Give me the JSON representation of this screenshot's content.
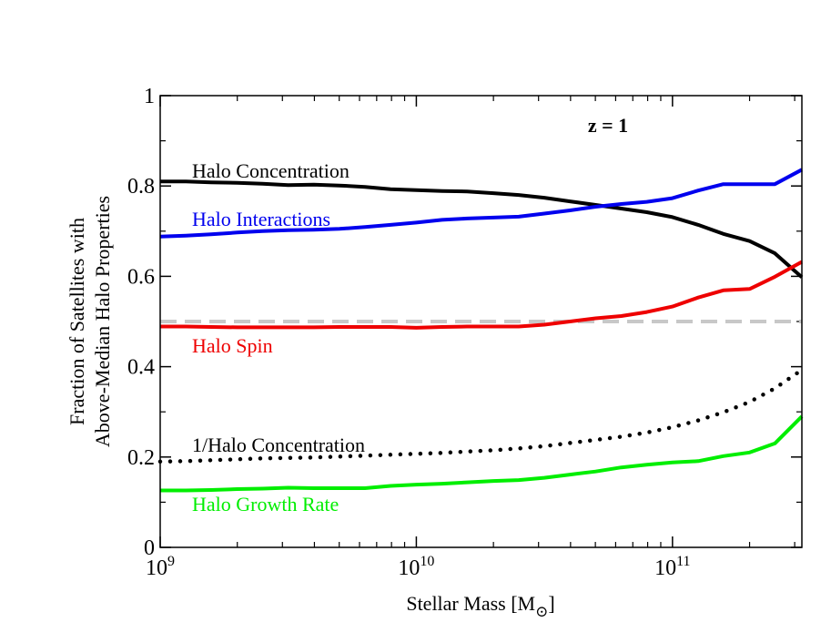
{
  "chart_data": {
    "type": "line",
    "x_scale": "log",
    "xlim": [
      1000000000,
      320000000000
    ],
    "ylim": [
      0,
      1
    ],
    "x_ticks": [
      {
        "value": 1000000000,
        "base": "10",
        "exp": "9"
      },
      {
        "value": 10000000000,
        "base": "10",
        "exp": "10"
      },
      {
        "value": 100000000000,
        "base": "10",
        "exp": "11"
      }
    ],
    "y_ticks": [
      {
        "value": 0,
        "label": "0"
      },
      {
        "value": 0.2,
        "label": "0.2"
      },
      {
        "value": 0.4,
        "label": "0.4"
      },
      {
        "value": 0.6,
        "label": "0.6"
      },
      {
        "value": 0.8,
        "label": "0.8"
      },
      {
        "value": 1,
        "label": "1"
      }
    ],
    "xlabel": {
      "text": "Stellar Mass [M",
      "sub": "⊙",
      "close": "]"
    },
    "ylabel_lines": [
      "Fraction of Satellites with",
      "Above-Median Halo Properties"
    ],
    "annotation": "z = 1",
    "grid": false,
    "reference_line": {
      "y": 0.5,
      "color": "#c8c8c8",
      "style": "dashed"
    },
    "series": [
      {
        "name": "Halo Concentration",
        "color": "#000000",
        "style": "solid",
        "x": [
          1000000000.0,
          1260000000.0,
          1580000000.0,
          2000000000.0,
          2510000000.0,
          3160000000.0,
          3980000000.0,
          5010000000.0,
          6310000000.0,
          7940000000.0,
          10000000000.0,
          12600000000.0,
          15800000000.0,
          20000000000.0,
          25100000000.0,
          31600000000.0,
          39800000000.0,
          50100000000.0,
          63100000000.0,
          79400000000.0,
          100000000000.0,
          126000000000.0,
          158000000000.0,
          200000000000.0,
          251000000000.0,
          320000000000.0
        ],
        "y": [
          0.81,
          0.81,
          0.808,
          0.807,
          0.805,
          0.802,
          0.803,
          0.801,
          0.798,
          0.793,
          0.791,
          0.789,
          0.788,
          0.784,
          0.78,
          0.774,
          0.766,
          0.758,
          0.75,
          0.742,
          0.731,
          0.714,
          0.694,
          0.678,
          0.651,
          0.598
        ]
      },
      {
        "name": "Halo Interactions",
        "color": "#0000ee",
        "style": "solid",
        "x": [
          1000000000.0,
          1260000000.0,
          1580000000.0,
          2000000000.0,
          2510000000.0,
          3160000000.0,
          3980000000.0,
          5010000000.0,
          6310000000.0,
          7940000000.0,
          10000000000.0,
          12600000000.0,
          15800000000.0,
          20000000000.0,
          25100000000.0,
          31600000000.0,
          39800000000.0,
          50100000000.0,
          63100000000.0,
          79400000000.0,
          100000000000.0,
          126000000000.0,
          158000000000.0,
          200000000000.0,
          251000000000.0,
          320000000000.0
        ],
        "y": [
          0.688,
          0.69,
          0.693,
          0.697,
          0.7,
          0.702,
          0.703,
          0.705,
          0.709,
          0.714,
          0.719,
          0.725,
          0.728,
          0.73,
          0.732,
          0.739,
          0.746,
          0.754,
          0.76,
          0.765,
          0.773,
          0.79,
          0.804,
          0.804,
          0.804,
          0.836
        ]
      },
      {
        "name": "Halo Spin",
        "color": "#ee0000",
        "style": "solid",
        "x": [
          1000000000.0,
          1260000000.0,
          1580000000.0,
          2000000000.0,
          2510000000.0,
          3160000000.0,
          3980000000.0,
          5010000000.0,
          6310000000.0,
          7940000000.0,
          10000000000.0,
          12600000000.0,
          15800000000.0,
          20000000000.0,
          25100000000.0,
          31600000000.0,
          39800000000.0,
          50100000000.0,
          63100000000.0,
          79400000000.0,
          100000000000.0,
          126000000000.0,
          158000000000.0,
          200000000000.0,
          251000000000.0,
          320000000000.0
        ],
        "y": [
          0.489,
          0.489,
          0.488,
          0.487,
          0.487,
          0.487,
          0.487,
          0.488,
          0.488,
          0.488,
          0.486,
          0.488,
          0.489,
          0.489,
          0.489,
          0.493,
          0.5,
          0.507,
          0.512,
          0.521,
          0.533,
          0.553,
          0.569,
          0.572,
          0.599,
          0.632
        ]
      },
      {
        "name": "1/Halo Concentration",
        "color": "#000000",
        "style": "dotted",
        "x": [
          1000000000.0,
          1260000000.0,
          1580000000.0,
          2000000000.0,
          2510000000.0,
          3160000000.0,
          3980000000.0,
          5010000000.0,
          6310000000.0,
          7940000000.0,
          10000000000.0,
          12600000000.0,
          15800000000.0,
          20000000000.0,
          25100000000.0,
          31600000000.0,
          39800000000.0,
          50100000000.0,
          63100000000.0,
          79400000000.0,
          100000000000.0,
          126000000000.0,
          158000000000.0,
          200000000000.0,
          251000000000.0,
          320000000000.0
        ],
        "y": [
          0.19,
          0.191,
          0.193,
          0.195,
          0.197,
          0.198,
          0.199,
          0.201,
          0.203,
          0.205,
          0.207,
          0.209,
          0.212,
          0.215,
          0.219,
          0.224,
          0.231,
          0.238,
          0.245,
          0.254,
          0.266,
          0.281,
          0.299,
          0.322,
          0.352,
          0.393
        ]
      },
      {
        "name": "Halo Growth Rate",
        "color": "#00ee00",
        "style": "solid",
        "x": [
          1000000000.0,
          1260000000.0,
          1580000000.0,
          2000000000.0,
          2510000000.0,
          3160000000.0,
          3980000000.0,
          5010000000.0,
          6310000000.0,
          7940000000.0,
          10000000000.0,
          12600000000.0,
          15800000000.0,
          20000000000.0,
          25100000000.0,
          31600000000.0,
          39800000000.0,
          50100000000.0,
          63100000000.0,
          79400000000.0,
          100000000000.0,
          126000000000.0,
          158000000000.0,
          200000000000.0,
          251000000000.0,
          320000000000.0
        ],
        "y": [
          0.126,
          0.126,
          0.127,
          0.129,
          0.13,
          0.132,
          0.131,
          0.131,
          0.131,
          0.136,
          0.139,
          0.141,
          0.144,
          0.147,
          0.149,
          0.154,
          0.161,
          0.168,
          0.177,
          0.183,
          0.188,
          0.191,
          0.202,
          0.21,
          0.23,
          0.29
        ]
      }
    ]
  }
}
